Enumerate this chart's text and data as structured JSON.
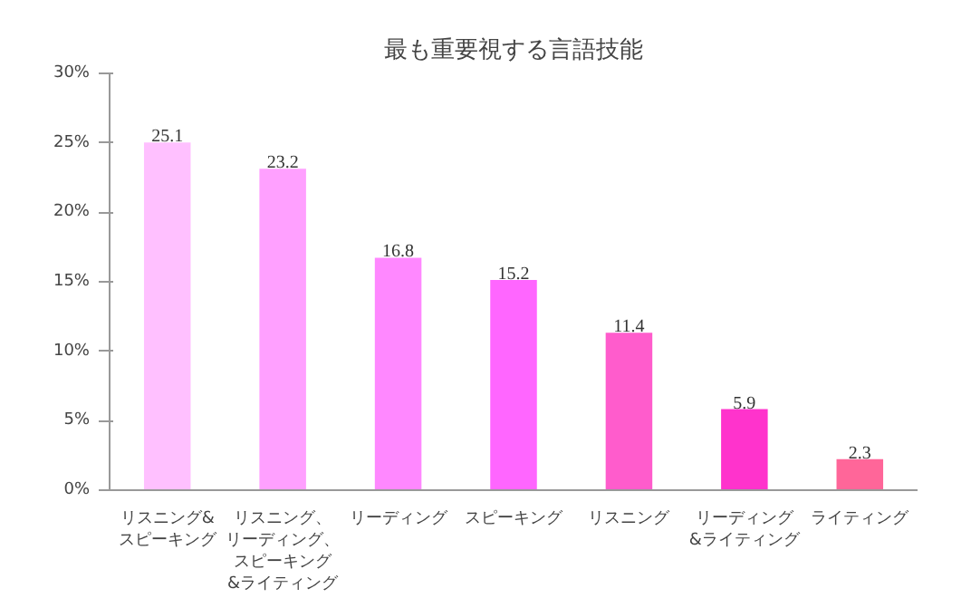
{
  "chart_data": {
    "type": "bar",
    "title": "最も重要視する言語技能",
    "categories": [
      "リスニング&スピーキング",
      "リスニング、リーディング、スピーキング&ライティング",
      "リーディング",
      "スピーキング",
      "リスニング",
      "リーディング&ライティング",
      "ライティング"
    ],
    "values": [
      25.1,
      23.2,
      16.8,
      15.2,
      11.4,
      5.9,
      2.3
    ],
    "colors": [
      "#ffc0ff",
      "#ffa0ff",
      "#ff88ff",
      "#ff66ff",
      "#ff5ccc",
      "#ff33cc",
      "#ff6699"
    ],
    "ylim": [
      0,
      30
    ],
    "yticks": [
      {
        "value": 0,
        "label": "0%"
      },
      {
        "value": 5,
        "label": "5%"
      },
      {
        "value": 10,
        "label": "10%"
      },
      {
        "value": 15,
        "label": "15%"
      },
      {
        "value": 20,
        "label": "20%"
      },
      {
        "value": 25,
        "label": "25%"
      },
      {
        "value": 30,
        "label": "30%"
      }
    ],
    "data_labels": true,
    "grid": false
  }
}
